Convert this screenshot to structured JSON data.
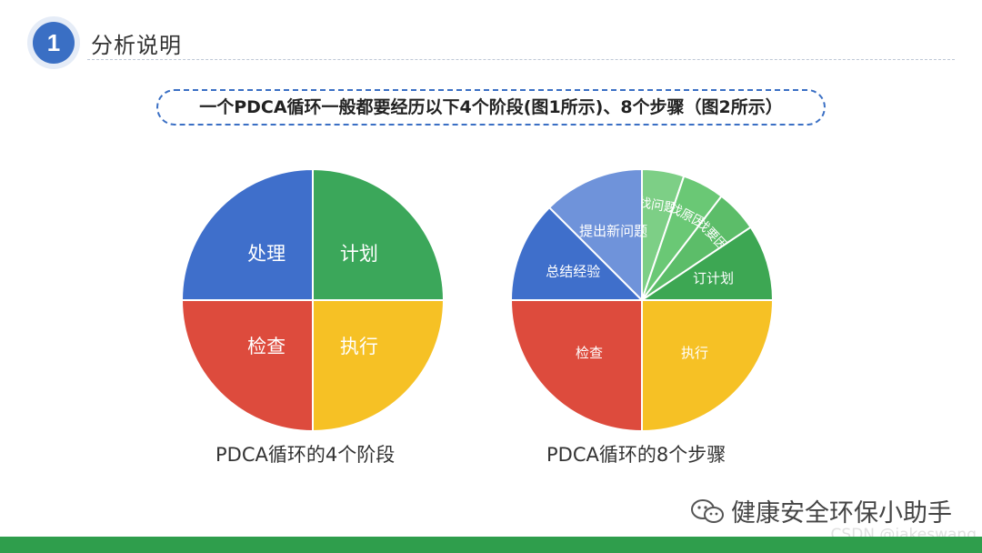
{
  "header": {
    "badge_number": "1",
    "title": "分析说明"
  },
  "banner": {
    "text": "一个PDCA循环一般都要经历以下4个阶段(图1所示)、8个步骤（图2所示）"
  },
  "charts": {
    "left": {
      "caption": "PDCA循环的4个阶段",
      "slices": [
        {
          "label": "计划",
          "color": "#3ba75a",
          "value": 25
        },
        {
          "label": "执行",
          "color": "#f6c125",
          "value": 25
        },
        {
          "label": "检查",
          "color": "#dd4b3d",
          "value": 25
        },
        {
          "label": "处理",
          "color": "#3f6fcb",
          "value": 25
        }
      ]
    },
    "right": {
      "caption": "PDCA循环的8个步骤",
      "slices": [
        {
          "label": "找问题",
          "color": "#7dcf86",
          "value": 5.2
        },
        {
          "label": "找原因",
          "color": "#6ac875",
          "value": 5.2
        },
        {
          "label": "找要因",
          "color": "#5cbd69",
          "value": 5.2
        },
        {
          "label": "订计划",
          "color": "#3da753",
          "value": 9.4
        },
        {
          "label": "执行",
          "color": "#f6c125",
          "value": 25
        },
        {
          "label": "检查",
          "color": "#dd4b3d",
          "value": 25
        },
        {
          "label": "总结经验",
          "color": "#3f6fcb",
          "value": 12.5
        },
        {
          "label": "提出新问题",
          "color": "#6f93da",
          "value": 12.5
        }
      ]
    }
  },
  "footer": {
    "watermark": "健康安全环保小助手",
    "csdn": "CSDN @jakeswang"
  }
}
